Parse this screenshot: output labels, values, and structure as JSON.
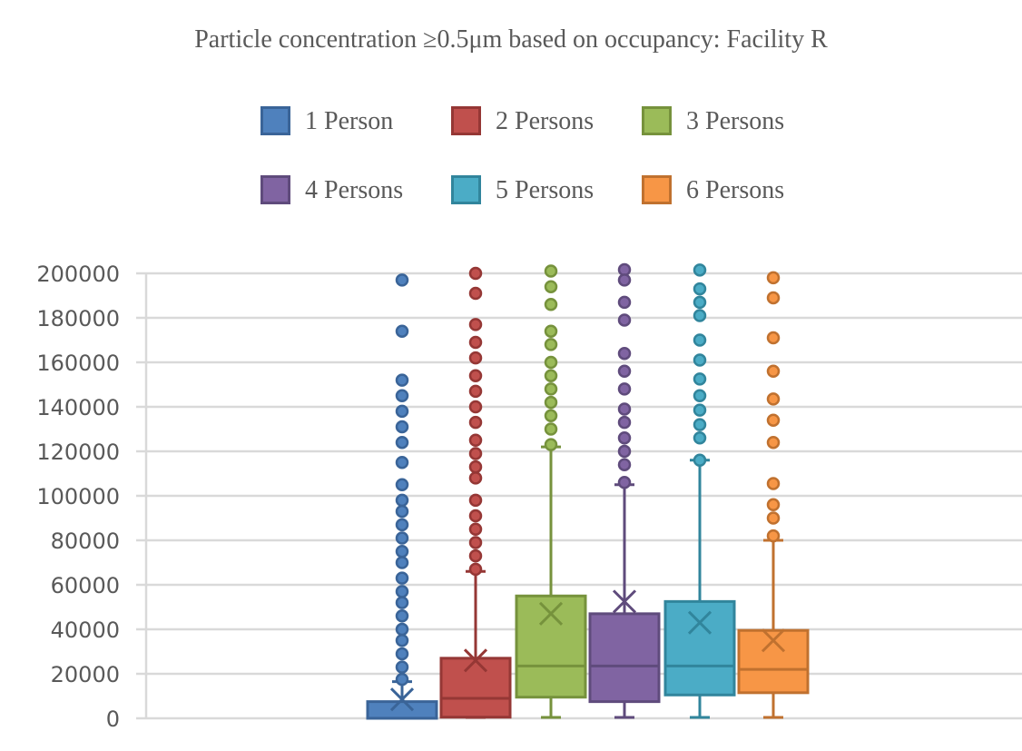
{
  "chart_data": {
    "type": "box",
    "title": "Particle concentration ≥0.5μm based on occupancy: Facility R",
    "xlabel": "",
    "ylabel": "",
    "ylim": [
      0,
      200000
    ],
    "yticks": [
      "0",
      "20000",
      "40000",
      "60000",
      "80000",
      "100000",
      "120000",
      "140000",
      "160000",
      "180000",
      "200000"
    ],
    "ytick_values": [
      0,
      20000,
      40000,
      60000,
      80000,
      100000,
      120000,
      140000,
      160000,
      180000,
      200000
    ],
    "grid": true,
    "legend_position": "top",
    "series": [
      {
        "name": "1 Person",
        "fill": "#4f81bd",
        "stroke": "#3a6498",
        "min": 0,
        "q1": 0,
        "median": 0,
        "q3": 7500,
        "max": 16500,
        "mean": 8500,
        "outliers": [
          197000,
          174000,
          152000,
          145000,
          138000,
          131000,
          124000,
          115000,
          105000,
          98000,
          93000,
          87000,
          81000,
          75000,
          70000,
          63000,
          57000,
          52000,
          46000,
          40000,
          35000,
          29000,
          23000,
          17500
        ]
      },
      {
        "name": "2 Persons",
        "fill": "#c0504d",
        "stroke": "#953735",
        "min": 0,
        "q1": 500,
        "median": 9000,
        "q3": 27000,
        "max": 66000,
        "mean": 26000,
        "outliers": [
          200000,
          191000,
          177000,
          169000,
          162000,
          154000,
          147000,
          140000,
          133000,
          125000,
          119000,
          113000,
          108000,
          98000,
          91000,
          85000,
          79000,
          73000,
          67000
        ]
      },
      {
        "name": "3 Persons",
        "fill": "#9bbb59",
        "stroke": "#76923c",
        "min": 0,
        "q1": 9500,
        "median": 23500,
        "q3": 55000,
        "max": 122000,
        "mean": 47000,
        "outliers": [
          201000,
          194000,
          186000,
          174000,
          168000,
          160000,
          154000,
          148000,
          142000,
          136000,
          130000,
          123000
        ]
      },
      {
        "name": "4 Persons",
        "fill": "#8064a2",
        "stroke": "#5f4b7c",
        "min": 0,
        "q1": 7500,
        "median": 23500,
        "q3": 47000,
        "max": 105000,
        "mean": 52500,
        "outliers": [
          202000,
          197000,
          187000,
          179000,
          164000,
          156000,
          148000,
          139000,
          133000,
          126000,
          120000,
          114000,
          106000
        ]
      },
      {
        "name": "5 Persons",
        "fill": "#4bacc6",
        "stroke": "#31859c",
        "min": 0,
        "q1": 10500,
        "median": 23500,
        "q3": 52500,
        "max": 116000,
        "mean": 43000,
        "outliers": [
          201500,
          193000,
          187000,
          181000,
          170000,
          161000,
          152500,
          145000,
          138500,
          132000,
          126000,
          116000
        ]
      },
      {
        "name": "6 Persons",
        "fill": "#f79646",
        "stroke": "#c0712f",
        "min": 0,
        "q1": 11500,
        "median": 22000,
        "q3": 39500,
        "max": 80000,
        "mean": 35000,
        "outliers": [
          198000,
          189000,
          171000,
          156000,
          143500,
          134000,
          124000,
          105500,
          96000,
          90000,
          82000
        ]
      }
    ]
  }
}
